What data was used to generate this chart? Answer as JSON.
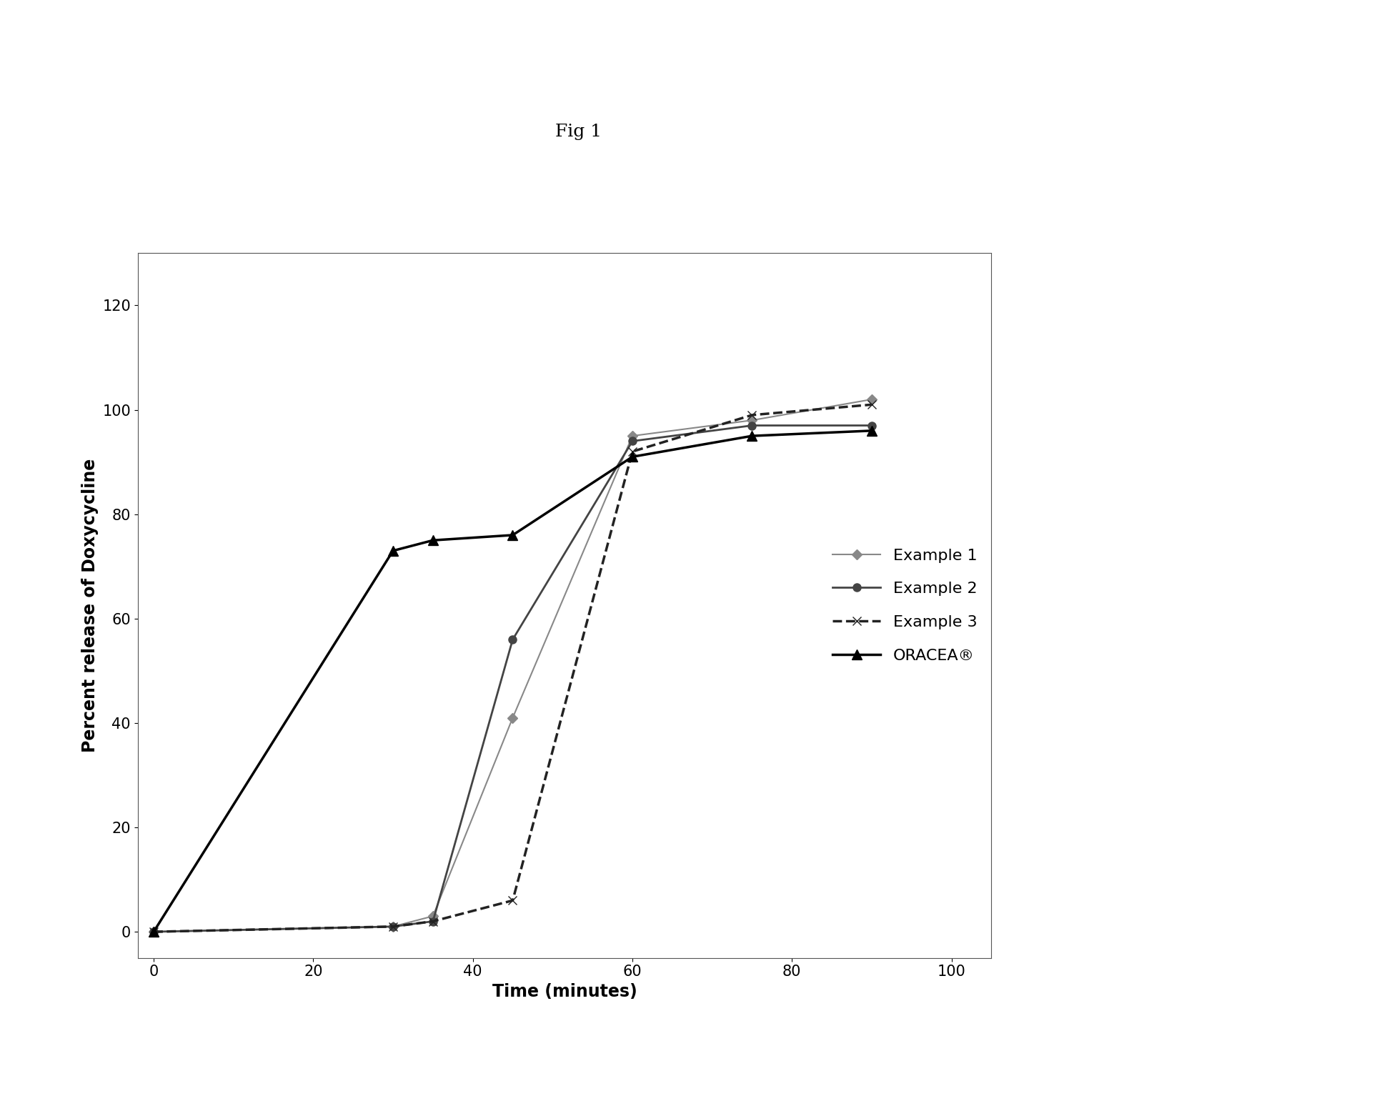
{
  "title": "Fig 1",
  "xlabel": "Time (minutes)",
  "ylabel": "Percent release of Doxycycline",
  "xlim": [
    -2,
    105
  ],
  "ylim": [
    -5,
    130
  ],
  "xticks": [
    0,
    20,
    40,
    60,
    80,
    100
  ],
  "yticks": [
    0,
    20,
    40,
    60,
    80,
    100,
    120
  ],
  "series": [
    {
      "label": "Example 1",
      "x": [
        0,
        30,
        35,
        45,
        60,
        75,
        90
      ],
      "y": [
        0,
        1,
        3,
        41,
        95,
        98,
        102
      ],
      "color": "#888888",
      "linewidth": 1.5,
      "linestyle": "-",
      "marker": "D",
      "markersize": 7,
      "markerfacecolor": "#888888",
      "zorder": 3
    },
    {
      "label": "Example 2",
      "x": [
        0,
        30,
        35,
        45,
        60,
        75,
        90
      ],
      "y": [
        0,
        1,
        2,
        56,
        94,
        97,
        97
      ],
      "color": "#444444",
      "linewidth": 2.0,
      "linestyle": "-",
      "marker": "o",
      "markersize": 8,
      "markerfacecolor": "#444444",
      "zorder": 3
    },
    {
      "label": "Example 3",
      "x": [
        0,
        30,
        35,
        45,
        60,
        75,
        90
      ],
      "y": [
        0,
        1,
        2,
        6,
        92,
        99,
        101
      ],
      "color": "#222222",
      "linewidth": 2.5,
      "linestyle": "--",
      "marker": "x",
      "markersize": 9,
      "markerfacecolor": "#222222",
      "zorder": 4
    },
    {
      "label": "ORACEA®",
      "x": [
        0,
        30,
        35,
        45,
        60,
        75,
        90
      ],
      "y": [
        0,
        73,
        75,
        76,
        91,
        95,
        96
      ],
      "color": "#000000",
      "linewidth": 2.5,
      "linestyle": "-",
      "marker": "^",
      "markersize": 10,
      "markerfacecolor": "#000000",
      "zorder": 5
    }
  ],
  "legend_fontsize": 16,
  "title_fontsize": 18,
  "axis_label_fontsize": 17,
  "tick_fontsize": 15,
  "background_color": "#ffffff",
  "figsize": [
    19.27,
    15.41
  ],
  "dpi": 100
}
